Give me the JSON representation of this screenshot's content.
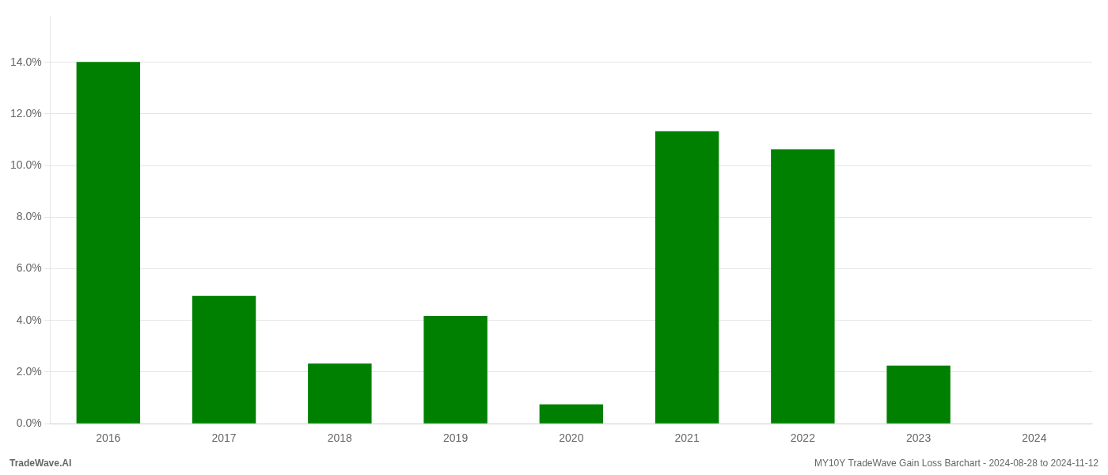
{
  "chart_data": {
    "type": "bar",
    "categories": [
      "2016",
      "2017",
      "2018",
      "2019",
      "2020",
      "2021",
      "2022",
      "2023",
      "2024"
    ],
    "values": [
      0.1401,
      0.0495,
      0.0233,
      0.0418,
      0.0075,
      0.1133,
      0.1063,
      0.0225,
      0.0
    ],
    "color": "#008000",
    "ylim": [
      0,
      0.158
    ],
    "yticks": [
      {
        "value": 0.0,
        "label": "0.0%"
      },
      {
        "value": 0.02,
        "label": "2.0%"
      },
      {
        "value": 0.04,
        "label": "4.0%"
      },
      {
        "value": 0.06,
        "label": "6.0%"
      },
      {
        "value": 0.08,
        "label": "8.0%"
      },
      {
        "value": 0.1,
        "label": "10.0%"
      },
      {
        "value": 0.12,
        "label": "12.0%"
      },
      {
        "value": 0.14,
        "label": "14.0%"
      }
    ],
    "grid": true,
    "annotations": [
      "TradeWave.AI",
      "MY10Y TradeWave Gain Loss Barchart - 2024-08-28 to 2024-11-12"
    ]
  }
}
